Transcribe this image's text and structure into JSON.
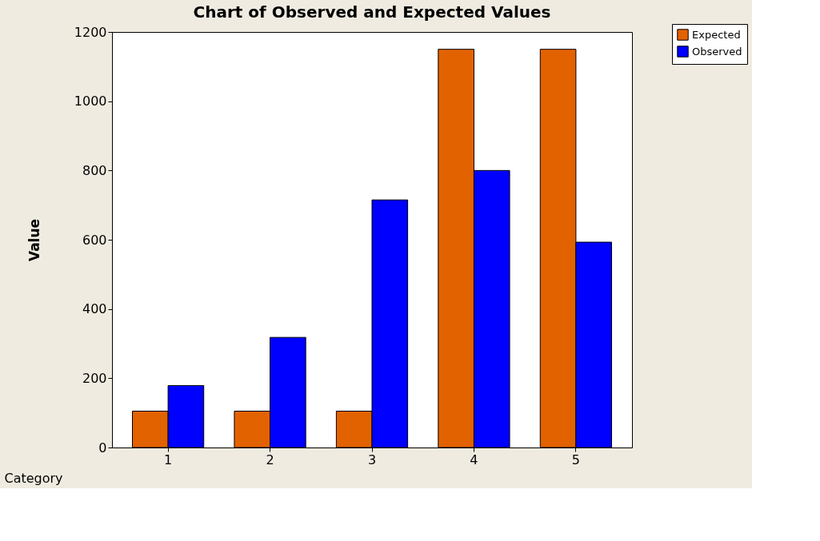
{
  "chart_data": {
    "type": "bar",
    "title": "Chart of Observed and Expected Values",
    "xlabel": "Category",
    "ylabel": "Value",
    "categories": [
      "1",
      "2",
      "3",
      "4",
      "5"
    ],
    "series": [
      {
        "name": "Expected",
        "color": "#e36200",
        "values": [
          105,
          105,
          105,
          1150,
          1150
        ]
      },
      {
        "name": "Observed",
        "color": "#0000ff",
        "values": [
          179,
          318,
          715,
          800,
          593
        ]
      }
    ],
    "ylim": [
      0,
      1200
    ],
    "yticks": [
      0,
      200,
      400,
      600,
      800,
      1000,
      1200
    ],
    "grid": false,
    "legend": "top right"
  }
}
